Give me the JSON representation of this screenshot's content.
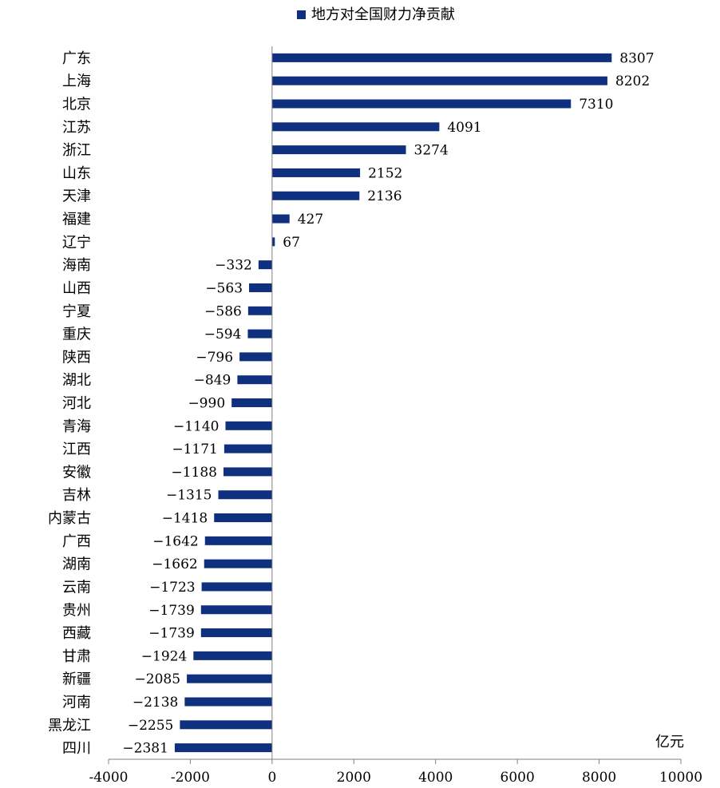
{
  "chart_data": {
    "type": "bar",
    "orientation": "horizontal",
    "title": "",
    "legend": {
      "position": "top-center",
      "entries": [
        "地方对全国财力净贡献"
      ]
    },
    "unit": "亿元",
    "xlim": [
      -4000,
      10000
    ],
    "xticks": [
      -4000,
      -2000,
      0,
      2000,
      4000,
      6000,
      8000,
      10000
    ],
    "grid": false,
    "bar_color": "#0f2f7f",
    "categories": [
      "广东",
      "上海",
      "北京",
      "江苏",
      "浙江",
      "山东",
      "天津",
      "福建",
      "辽宁",
      "海南",
      "山西",
      "宁夏",
      "重庆",
      "陕西",
      "湖北",
      "河北",
      "青海",
      "江西",
      "安徽",
      "吉林",
      "内蒙古",
      "广西",
      "湖南",
      "云南",
      "贵州",
      "西藏",
      "甘肃",
      "新疆",
      "河南",
      "黑龙江",
      "四川"
    ],
    "series": [
      {
        "name": "地方对全国财力净贡献",
        "values": [
          8307,
          8202,
          7310,
          4091,
          3274,
          2152,
          2136,
          427,
          67,
          -332,
          -563,
          -586,
          -594,
          -796,
          -849,
          -990,
          -1140,
          -1171,
          -1188,
          -1315,
          -1418,
          -1642,
          -1662,
          -1723,
          -1739,
          -1739,
          -1924,
          -2085,
          -2138,
          -2255,
          -2381
        ]
      }
    ]
  }
}
